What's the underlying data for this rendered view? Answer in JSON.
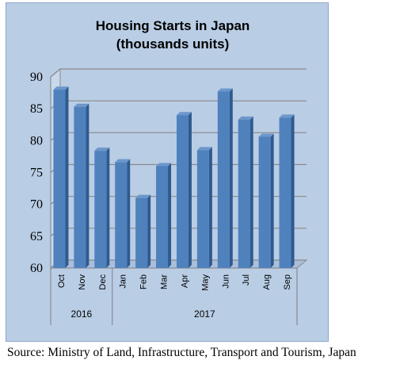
{
  "chart_data": {
    "type": "bar",
    "title": "Housing Starts in Japan",
    "subtitle": "(thousands units)",
    "categories": [
      "Oct",
      "Nov",
      "Dec",
      "Jan",
      "Feb",
      "Mar",
      "Apr",
      "May",
      "Jun",
      "Jul",
      "Aug",
      "Sep"
    ],
    "year_groups": [
      {
        "label": "2016",
        "span": 3
      },
      {
        "label": "2017",
        "span": 9
      }
    ],
    "values": [
      88.0,
      85.3,
      78.4,
      76.6,
      71.0,
      76.0,
      84.0,
      78.5,
      87.7,
      83.3,
      80.6,
      83.6
    ],
    "ylim": [
      60,
      90
    ],
    "yticks": [
      60,
      65,
      70,
      75,
      80,
      85,
      90
    ],
    "grid": true,
    "bar_color": "#4f81bd",
    "background_color": "#b9cde5"
  },
  "source": "Source: Ministry of Land, Infrastructure, Transport and Tourism, Japan"
}
